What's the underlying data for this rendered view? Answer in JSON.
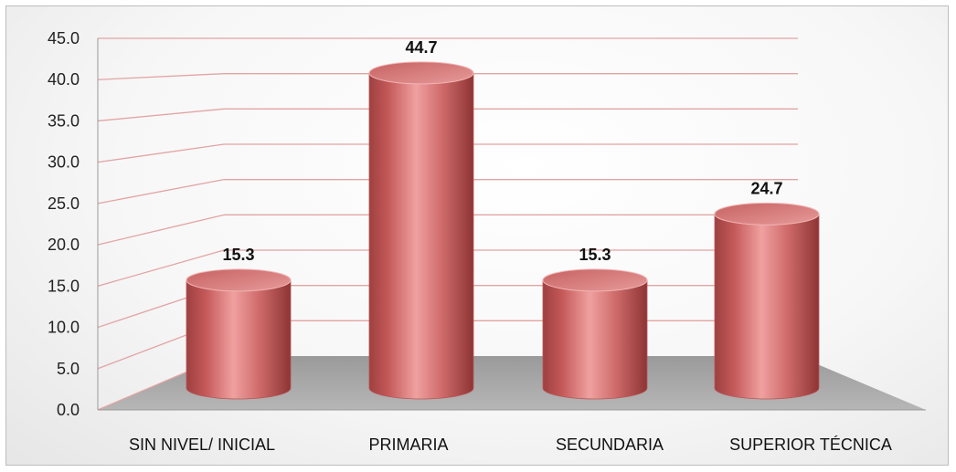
{
  "chart_data": {
    "type": "bar",
    "categories": [
      "SIN NIVEL/ INICIAL",
      "PRIMARIA",
      "SECUNDARIA",
      "SUPERIOR TÉCNICA"
    ],
    "values": [
      15.3,
      44.7,
      15.3,
      24.7
    ],
    "value_labels": [
      "15.3",
      "44.7",
      "15.3",
      "24.7"
    ],
    "y_ticks": [
      "0.0",
      "5.0",
      "10.0",
      "15.0",
      "20.0",
      "25.0",
      "30.0",
      "35.0",
      "40.0",
      "45.0"
    ],
    "ylim": [
      0,
      45
    ],
    "title": "",
    "xlabel": "",
    "ylabel": "",
    "bar_style": "3d-cylinder",
    "bar_color": "#d46a6a",
    "floor_color": "#a9a9a9",
    "gridline_color": "#e3a3a3",
    "grid": true,
    "legend": "none"
  }
}
